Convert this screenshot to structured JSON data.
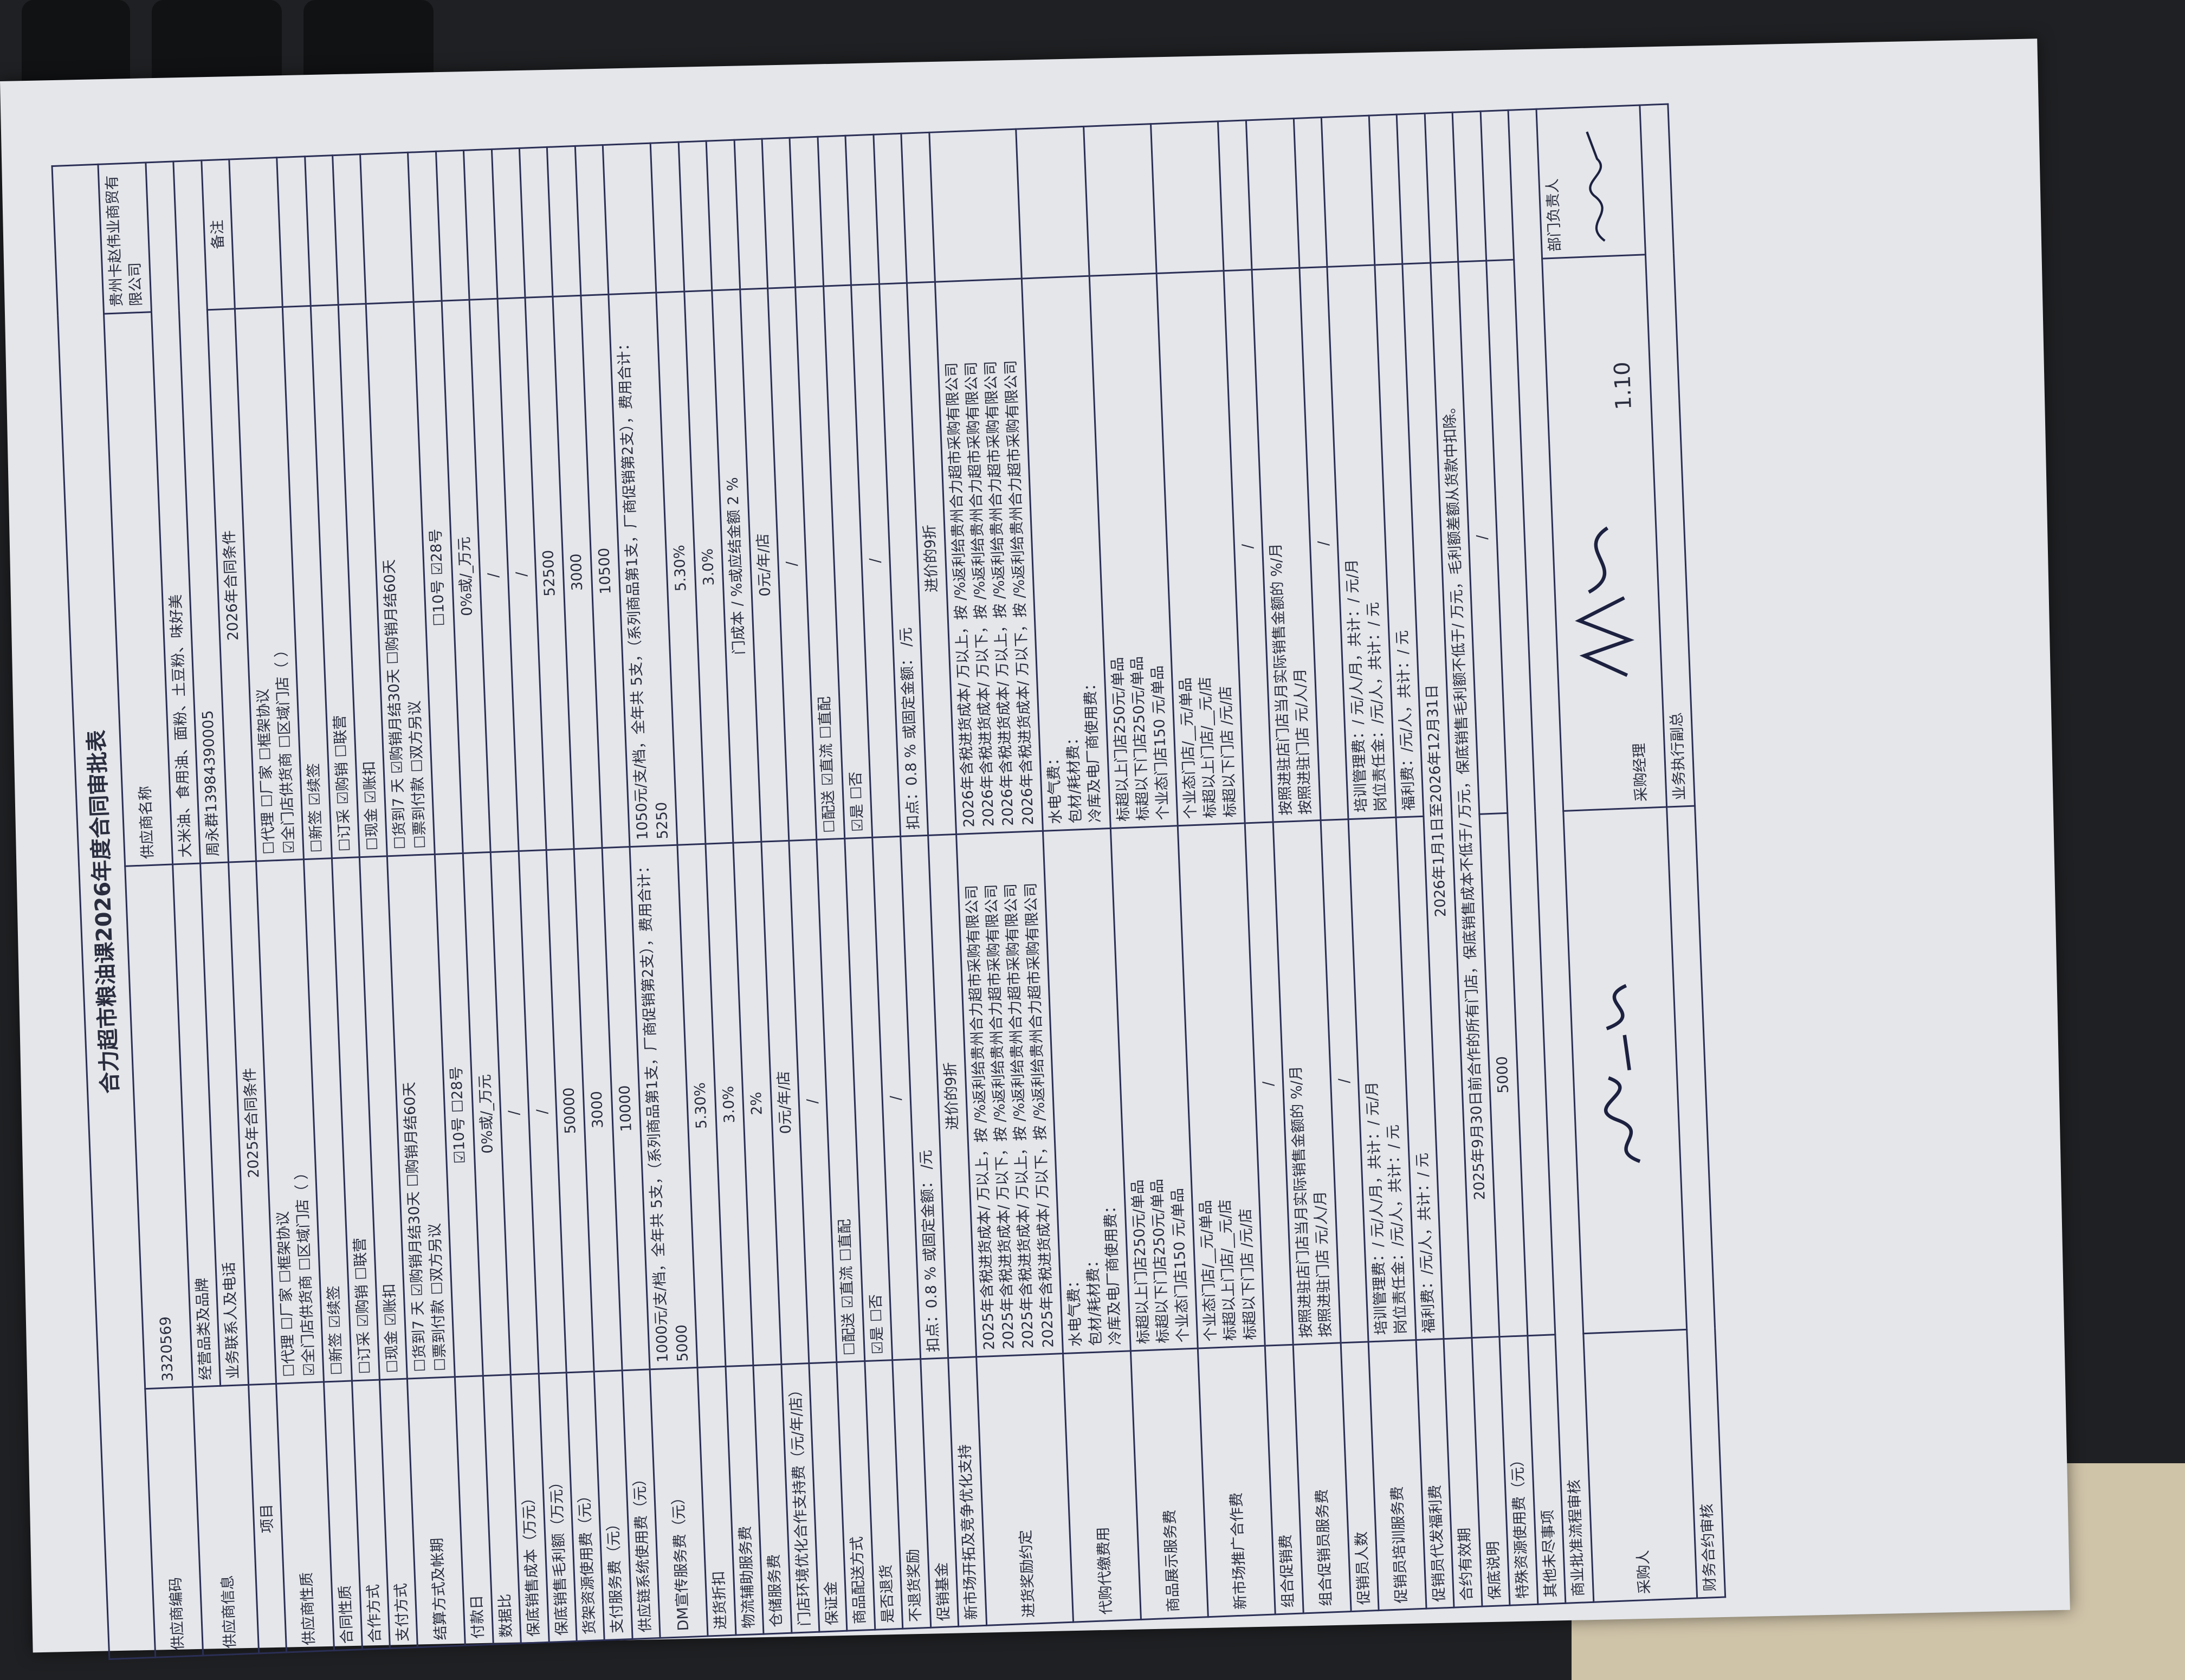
{
  "title": "合力超市粮油课2026年度合同审批表",
  "supplier": {
    "code_label": "供应商编码",
    "code": "3320569",
    "name_label": "供应商名称",
    "name": "贵州卡赵伟业商贸有限公司",
    "info_label": "供应商信息",
    "category_label": "经营品类及品牌",
    "category": "大米油、食用油、面粉、土豆粉、味好美",
    "contact_label": "业务联系人及电话",
    "contact": "周永群13984390005"
  },
  "columns": [
    "项目",
    "2025年合同条件",
    "2026年合同条件",
    "备注"
  ],
  "rows": [
    {
      "label": "供应商性质",
      "c2025": "☐代理 ☐厂家 ☐框架协议\n☑全门店供货商 ☐区域门店（ ）",
      "c2026": "☐代理 ☐厂家 ☐框架协议\n☑全门店供货商 ☐区域门店（ ）"
    },
    {
      "label": "合同性质",
      "c2025": "☐新签 ☑续签",
      "c2026": "☐新签 ☑续签"
    },
    {
      "label": "合作方式",
      "c2025": "☐订采 ☑购销 ☐联营",
      "c2026": "☐订采 ☑购销 ☐联营"
    },
    {
      "label": "支付方式",
      "c2025": "☐现金 ☑账扣",
      "c2026": "☐现金 ☑账扣"
    },
    {
      "label": "结算方式及帐期",
      "c2025": "☐货到7 天 ☑购销月结30天 ☐购销月结60天\n☐票到付款 ☐双方另议",
      "c2026": "☐货到7 天 ☑购销月结30天 ☐购销月结60天\n☐票到付款 ☐双方另议"
    },
    {
      "label": "付款日",
      "c2025": "☑10号 ☐28号",
      "c2026": "☐10号 ☑28号",
      "center": true
    },
    {
      "label": "数据比",
      "c2025": "0%或/_万元",
      "c2026": "0%或/_万元",
      "center": true
    },
    {
      "label": "保底销售成本（万元）",
      "c2025": "/",
      "c2026": "/",
      "center": true
    },
    {
      "label": "保底销售毛利额（万元）",
      "c2025": "/",
      "c2026": "/",
      "center": true
    },
    {
      "label": "货架资源使用费（元）",
      "c2025": "50000",
      "c2026": "52500",
      "center": true
    },
    {
      "label": "支付服务费（元）",
      "c2025": "3000",
      "c2026": "3000",
      "center": true
    },
    {
      "label": "供应链系统使用费（元）",
      "c2025": "10000",
      "c2026": "10500",
      "center": true
    },
    {
      "label": "DM宣传服务费（元）",
      "c2025": "1000元/支/档，全年共 5支，（系列商品第1支，厂商促销第2支），费用合计：5000",
      "c2026": "1050元/支/档，全年共 5支，（系列商品第1支，厂商促销第2支），费用合计：5250"
    },
    {
      "label": "进货折扣",
      "c2025": "5.30%",
      "c2026": "5.30%",
      "center": true
    },
    {
      "label": "物流辅助服务费",
      "c2025": "3.0%",
      "c2026": "3.0%",
      "center": true
    },
    {
      "label": "仓储服务费",
      "c2025": "2%",
      "c2026": "门成本 / %或应结金额 2 %",
      "center": true
    },
    {
      "label": "门店环境优化合作支持费（元/年/店）",
      "c2025": "0元/年/店",
      "c2026": "0元/年/店",
      "center": true
    },
    {
      "label": "保证金",
      "c2025": "/",
      "c2026": "/",
      "center": true
    },
    {
      "label": "商品配送方式",
      "c2025": "☐配送 ☑直流 ☐直配",
      "c2026": "☐配送 ☑直流 ☐直配"
    },
    {
      "label": "是否退货",
      "c2025": "☑是 ☐否",
      "c2026": "☑是 ☐否"
    },
    {
      "label": "不退货奖励",
      "c2025": "/",
      "c2026": "/",
      "center": true
    },
    {
      "label": "促销基金",
      "c2025": "扣点：0.8 % 或固定金额： /元",
      "c2026": "扣点：0.8 % 或固定金额： /元"
    },
    {
      "label": "新市场开拓及竞争优化支持",
      "c2025": "进价的9折",
      "c2026": "进价的9折",
      "center": true
    },
    {
      "label": "进货奖励约定",
      "c2025": "2025年含税进货成本/ 万以上，按 /%返利给贵州合力超市采购有限公司\n2025年含税进货成本/ 万以下，按 /%返利给贵州合力超市采购有限公司\n2025年含税进货成本/ 万以上，按 /%返利给贵州合力超市采购有限公司\n2025年含税进货成本/ 万以下，按 /%返利给贵州合力超市采购有限公司",
      "c2026": "2026年含税进货成本/ 万以上，按 /%返利给贵州合力超市采购有限公司\n2026年含税进货成本/ 万以下，按 /%返利给贵州合力超市采购有限公司\n2026年含税进货成本/ 万以上，按 /%返利给贵州合力超市采购有限公司\n2026年含税进货成本/ 万以下，按 /%返利给贵州合力超市采购有限公司"
    },
    {
      "label": "代购代缴费用",
      "c2025": "水电气费：\n包材/耗材费：\n冷库及电厂商使用费：",
      "c2026": "水电气费：\n包材/耗材费：\n冷库及电厂商使用费："
    },
    {
      "label": "商品展示服务费",
      "c2025": "标超以上门店250元/单品\n标超以下门店250元/单品\n个业态门店150 元/单品",
      "c2026": "标超以上门店250元/单品\n标超以下门店250元/单品\n个业态门店150 元/单品"
    },
    {
      "label": "新市场推广合作费",
      "c2025": "个业态门店/__元/单品\n标超以上门店/__元/店\n标超以下门店 /元/店",
      "c2026": "个业态门店/__元/单品\n标超以上门店/__元/店\n标超以下门店 /元/店"
    },
    {
      "label": "组合促销费",
      "c2025": "/",
      "c2026": "/",
      "center": true
    },
    {
      "label": "组合促销员服务费",
      "c2025": "按照进驻店门店当月实际销售金额的 %/月\n按照进驻门店 元/人/月",
      "c2026": "按照进驻店门店当月实际销售金额的 %/月\n按照进驻门店 元/人/月"
    },
    {
      "label": "促销员人数",
      "c2025": "/",
      "c2026": "/",
      "center": true
    },
    {
      "label": "促销员培训服务费",
      "c2025": "培训管理费：/ 元/人/月，共计：/ 元/月\n岗位责任金：/元/人，共计：/ 元",
      "c2026": "培训管理费：/ 元/人/月，共计：/ 元/月\n岗位责任金：/元/人，共计：/ 元"
    },
    {
      "label": "促销员代发福利费",
      "c2025": "福利费：/元/人，共计：/ 元",
      "c2026": "福利费：/元/人，共计：/ 元"
    },
    {
      "label": "合约有效期",
      "span": "2026年1月1日至2026年12月31日"
    },
    {
      "label": "保底说明",
      "span": "2025年9月30日前合作的所有门店，保底销售成本不低于/ 万元，保底销售毛利额不低于/ 万元，毛利额差额从货款中扣除。"
    },
    {
      "label": "特殊资源使用费（元）",
      "c2025": "5000",
      "c2026": "/",
      "center": true
    },
    {
      "label": "其他未尽事项",
      "span": ""
    }
  ],
  "approval": {
    "section_label": "商业批准流程审核",
    "buyer_label": "采购人",
    "manager_label": "采购经理",
    "manager_date": "1.10",
    "dept_head_label": "部门负责人",
    "finance_label": "财务合约审核",
    "vp_label": "业务执行副总"
  },
  "colors": {
    "ink": "#2b2f55",
    "paper": "#e4e6ea",
    "background": "#1f2023"
  }
}
